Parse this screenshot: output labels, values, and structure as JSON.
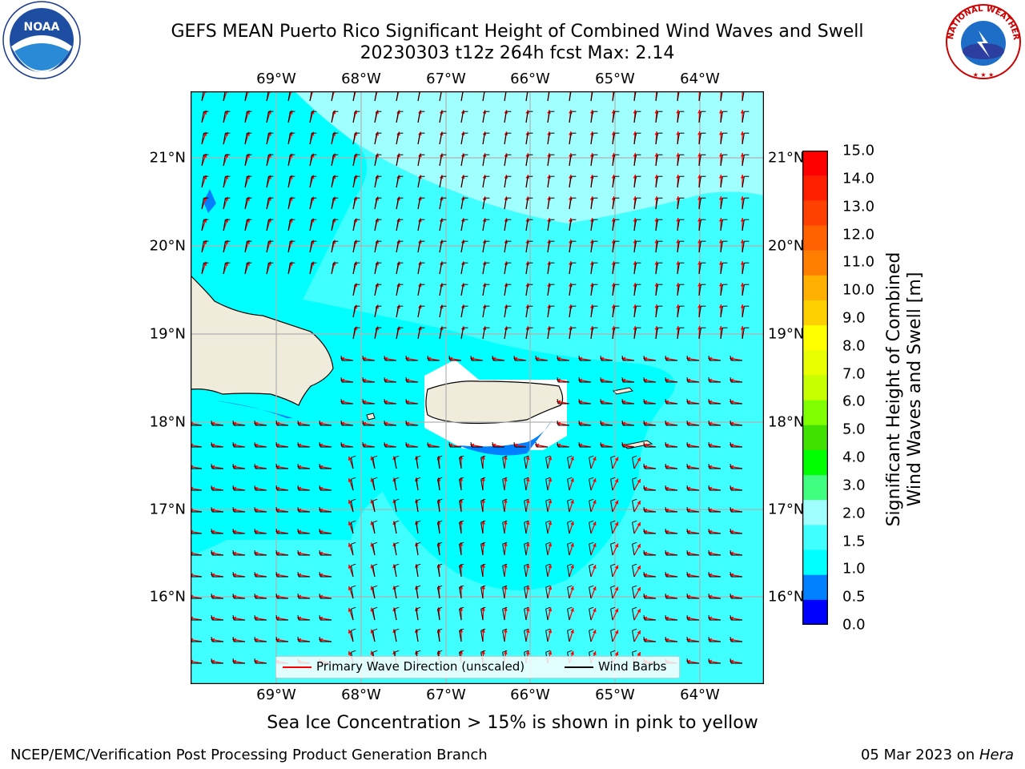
{
  "header": {
    "title_line1": "GEFS MEAN Puerto Rico Significant Height of Combined Wind Waves and Swell",
    "title_line2": "20230303 t12z 264h fcst   Max: 2.14"
  },
  "map": {
    "lon_labels": [
      "69°W",
      "68°W",
      "67°W",
      "66°W",
      "65°W",
      "64°W"
    ],
    "lat_labels": [
      "21°N",
      "20°N",
      "19°N",
      "18°N",
      "17°N",
      "16°N"
    ],
    "colors": {
      "land": "#efecdc",
      "band_1_1_5": "#00ffff",
      "band_1_5_2": "#40ffff",
      "band_2_3": "#a0ffff",
      "band_0_5_1": "#0080ff",
      "gridline": "#b0b0b0",
      "wave_arrow": "#ff0000",
      "wind_barb": "#000000"
    }
  },
  "legend": {
    "wave_label": "Primary Wave Direction (unscaled)",
    "wind_label": "Wind Barbs"
  },
  "colorbar": {
    "title_line1": "Significant Height of Combined",
    "title_line2": "Wind Waves and Swell [m]",
    "ticks": [
      "15.0",
      "14.0",
      "13.0",
      "12.0",
      "11.0",
      "10.0",
      "9.0",
      "8.0",
      "7.0",
      "6.0",
      "5.0",
      "4.0",
      "3.0",
      "2.0",
      "1.5",
      "1.0",
      "0.5",
      "0.0"
    ],
    "colors": [
      "#ff0000",
      "#ff2000",
      "#ff4000",
      "#ff6000",
      "#ff8000",
      "#ffb000",
      "#ffd000",
      "#ffff00",
      "#e8ff00",
      "#c8ff00",
      "#80ff00",
      "#40e000",
      "#00ff00",
      "#40ff80",
      "#a0ffff",
      "#40ffff",
      "#00ffff",
      "#0080ff",
      "#0000ff"
    ]
  },
  "notes": {
    "sea_ice": "Sea Ice Concentration > 15% is shown in pink to yellow"
  },
  "footer": {
    "left": "NCEP/EMC/Verification Post Processing Product Generation Branch",
    "right_date": "05 Mar 2023 on ",
    "right_host": "Hera"
  },
  "logos": {
    "noaa_text": "NOAA",
    "nws_text": "NATIONAL WEATHER SERVICE"
  }
}
